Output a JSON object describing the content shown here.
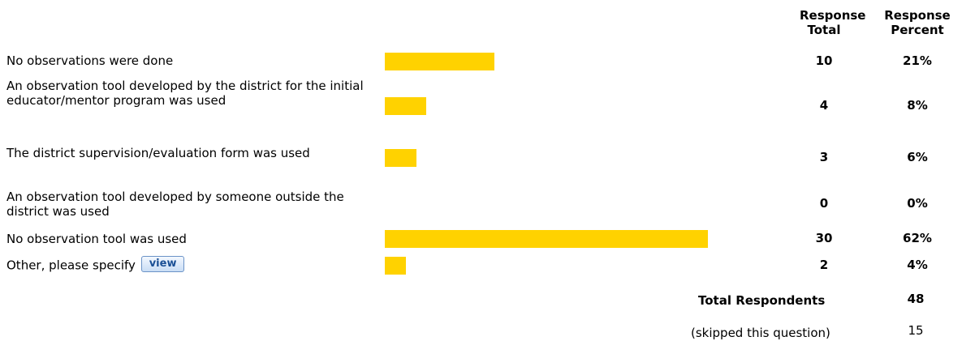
{
  "colors": {
    "bar": "#FFD200",
    "button_text": "#1a4f95"
  },
  "headers": {
    "total_line1": "Response",
    "total_line2": "Total",
    "percent_line1": "Response",
    "percent_line2": "Percent"
  },
  "view_button": {
    "label": "view"
  },
  "summary": {
    "total_label": "Total Respondents",
    "total_value": "48",
    "skipped_label": "(skipped this question)",
    "skipped_value": "15"
  },
  "chart_data": {
    "type": "bar",
    "categories": [
      "No observations were done",
      "An observation tool developed by the district for the initial educator/mentor program was used",
      "The district supervision/evaluation form was used",
      "An observation tool developed by someone outside the district was used",
      "No observation tool was used",
      "Other, please specify"
    ],
    "totals": [
      10,
      4,
      3,
      0,
      30,
      2
    ],
    "percents": [
      "21%",
      "8%",
      "6%",
      "0%",
      "62%",
      "4%"
    ],
    "values": [
      21,
      8,
      6,
      0,
      62,
      4
    ],
    "orientation": "horizontal",
    "xlim": [
      0,
      100
    ]
  }
}
